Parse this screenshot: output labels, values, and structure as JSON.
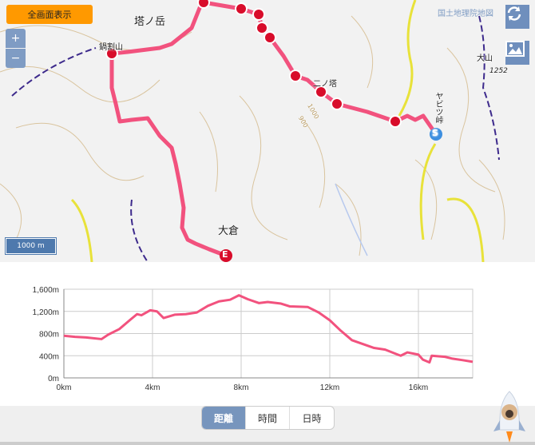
{
  "map": {
    "fullscreen_label": "全画面表示",
    "zoom_in": "+",
    "zoom_out": "−",
    "attribution": "国土地理院地図",
    "scale_label": "1000 m",
    "labels": {
      "tonodake": "塔ノ岳",
      "nabewari": "鍋割山",
      "ninoto": "二ノ塔",
      "oyama": "大山",
      "oyama_elev": "1252",
      "yabitsu": "ヤビツ峠",
      "okura": "大倉",
      "contour1": "1000",
      "contour2": "900"
    },
    "start_marker": "S",
    "end_marker": "E",
    "route_color": "#f2527e",
    "icons": [
      "refresh-icon",
      "image-icon"
    ]
  },
  "chart_data": {
    "type": "line",
    "title": "",
    "xlabel": "",
    "ylabel": "",
    "xlim": [
      0,
      18.45
    ],
    "ylim": [
      0,
      1600
    ],
    "xticks": [
      "0km",
      "4km",
      "8km",
      "12km",
      "16km"
    ],
    "yticks": [
      "0m",
      "400m",
      "800m",
      "1,200m",
      "1,600m"
    ],
    "grid": true,
    "color": "#f2527e",
    "x": [
      0,
      0.5,
      1,
      1.7,
      2,
      2.5,
      3,
      3.3,
      3.5,
      3.9,
      4.2,
      4.5,
      5,
      5.5,
      6,
      6.5,
      7,
      7.5,
      7.9,
      8.3,
      8.8,
      9.2,
      9.8,
      10.2,
      11,
      11.5,
      12,
      12.5,
      13,
      13.5,
      14,
      14.5,
      15,
      15.2,
      15.5,
      16,
      16.2,
      16.5,
      16.6,
      17.2,
      17.5,
      18,
      18.45
    ],
    "y": [
      760,
      740,
      730,
      700,
      780,
      880,
      1050,
      1150,
      1130,
      1220,
      1200,
      1080,
      1140,
      1150,
      1180,
      1300,
      1380,
      1410,
      1490,
      1420,
      1350,
      1370,
      1340,
      1290,
      1280,
      1180,
      1040,
      850,
      680,
      610,
      540,
      510,
      430,
      400,
      460,
      420,
      330,
      280,
      400,
      380,
      350,
      320,
      290
    ]
  },
  "footer": {
    "tabs": [
      "距離",
      "時間",
      "日時"
    ],
    "active_tab": 0
  }
}
